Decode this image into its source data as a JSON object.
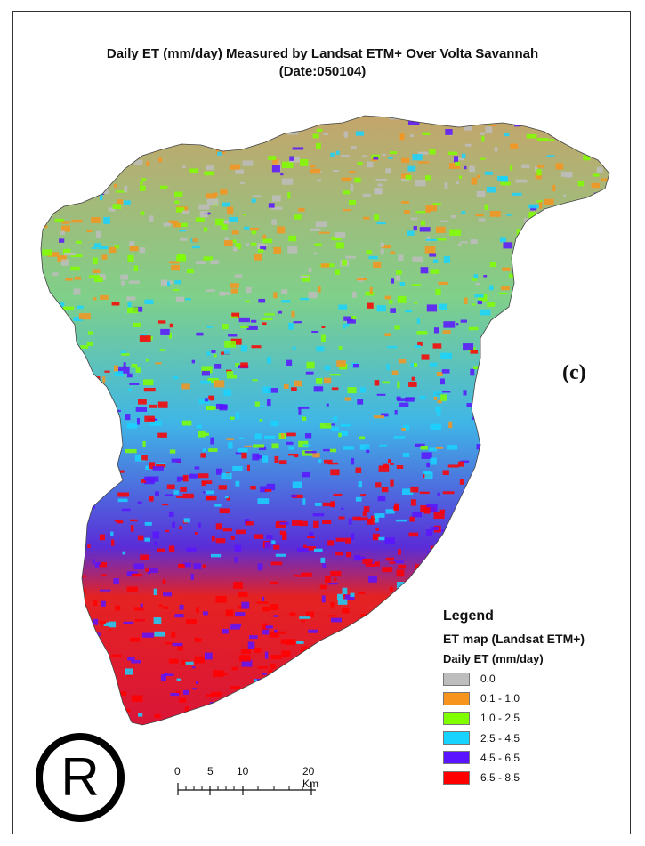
{
  "map": {
    "title_line1": "Daily ET (mm/day) Measured by Landsat ETM+ Over Volta Savannah",
    "title_line2": "(Date:050104)",
    "panel_label": "(c)"
  },
  "legend": {
    "heading": "Legend",
    "layer_name": "ET map (Landsat ETM+)",
    "field_name": "Daily ET (mm/day)",
    "classes": [
      {
        "label": "0.0",
        "color": "#bdbdbd"
      },
      {
        "label": "0.1 - 1.0",
        "color": "#f7941d"
      },
      {
        "label": "1.0 - 2.5",
        "color": "#80ff00"
      },
      {
        "label": "2.5 - 4.5",
        "color": "#19d3ff"
      },
      {
        "label": "4.5 - 6.5",
        "color": "#5a14ff"
      },
      {
        "label": "6.5 - 8.5",
        "color": "#ff0000"
      }
    ]
  },
  "scalebar": {
    "labels": [
      "0",
      "5",
      "10",
      "20 Km"
    ]
  },
  "registered_mark": "R"
}
